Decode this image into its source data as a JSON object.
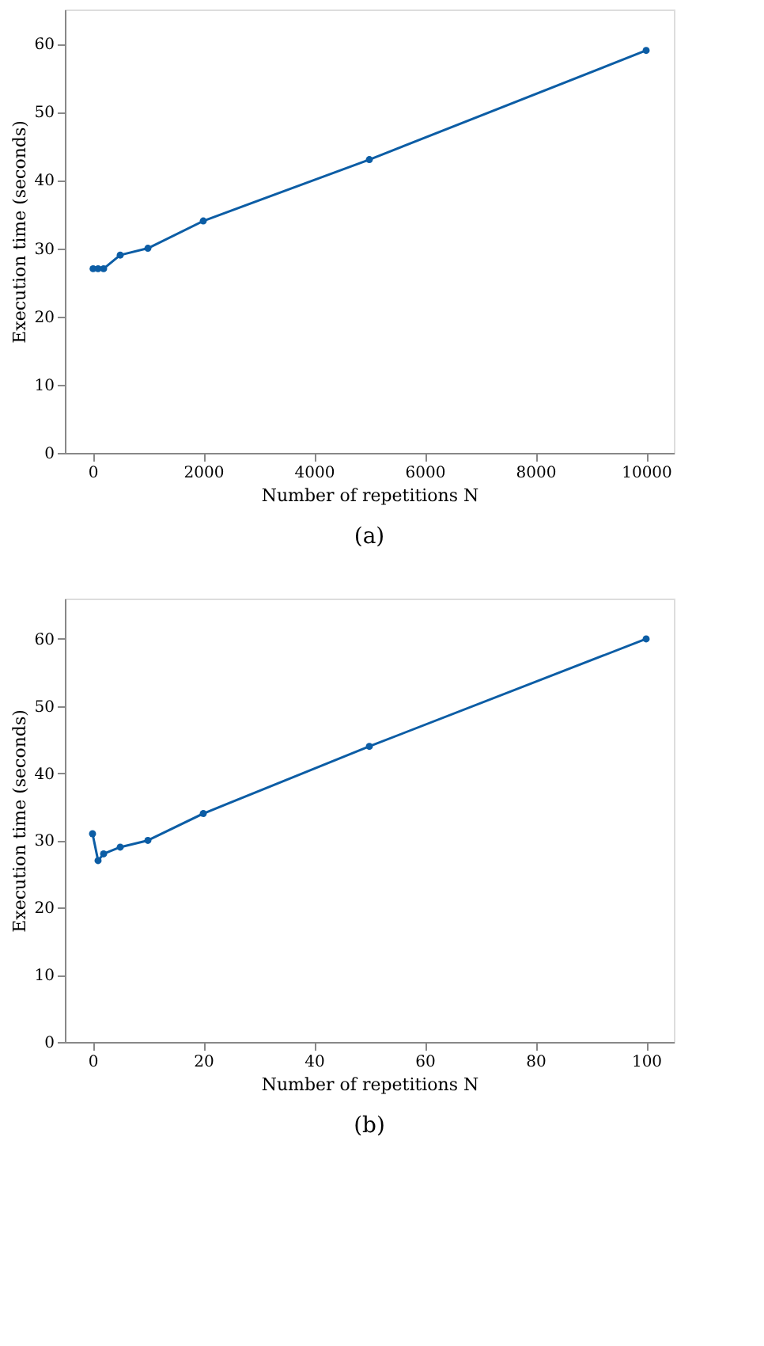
{
  "chart_data": [
    {
      "type": "line",
      "x": [
        10,
        100,
        200,
        500,
        1000,
        2000,
        5000,
        10000
      ],
      "series": [
        {
          "color": "#0c5da5",
          "values": [
            27,
            27,
            27,
            29,
            30,
            34,
            43,
            59
          ]
        }
      ],
      "xlabel": "Number of repetitions N",
      "ylabel": "Execution time (seconds)",
      "xlim": [
        -500,
        10500
      ],
      "xticks": [
        0,
        2000,
        4000,
        6000,
        8000,
        10000
      ],
      "ylim": [
        0,
        65
      ],
      "yticks": [
        0,
        10,
        20,
        30,
        40,
        50,
        60
      ],
      "marker": "circle",
      "grid": false,
      "annotations": [
        "(a)"
      ]
    },
    {
      "type": "line",
      "x": [
        0,
        1,
        2,
        5,
        10,
        20,
        50,
        100
      ],
      "series": [
        {
          "color": "#0c5da5",
          "values": [
            31,
            27,
            28,
            29,
            30,
            34,
            44,
            60
          ]
        }
      ],
      "xlabel": "Number of repetitions N",
      "ylabel": "Execution time (seconds)",
      "xlim": [
        -5,
        105
      ],
      "xticks": [
        0,
        20,
        40,
        60,
        80,
        100
      ],
      "ylim": [
        0,
        66
      ],
      "yticks": [
        0,
        10,
        20,
        30,
        40,
        50,
        60
      ],
      "marker": "circle",
      "grid": false,
      "annotations": [
        "(b)"
      ]
    }
  ]
}
